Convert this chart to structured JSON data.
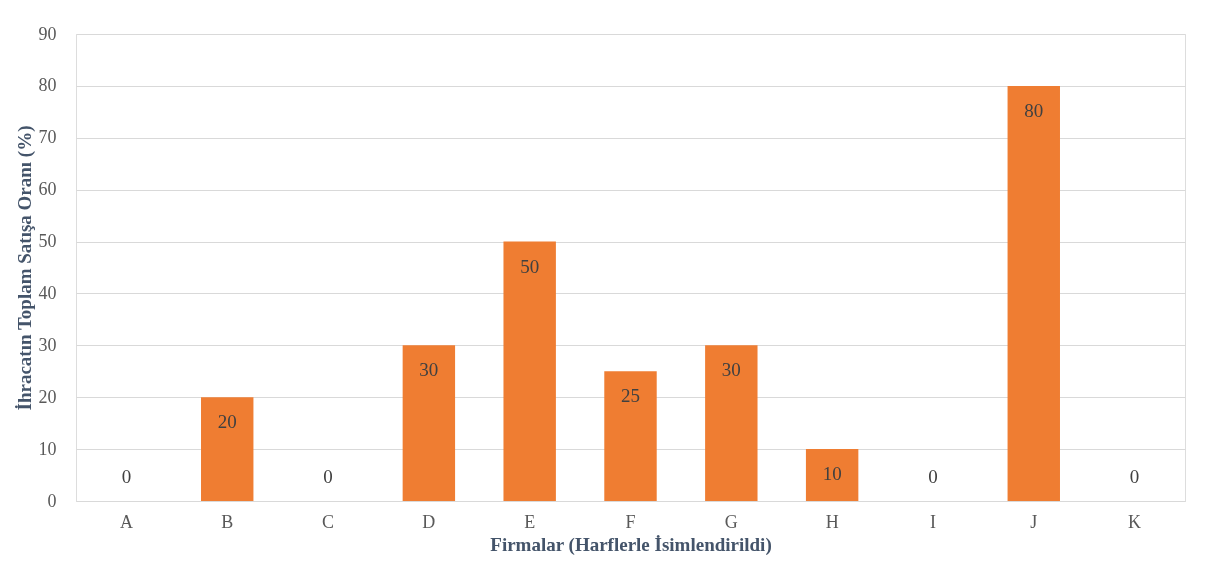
{
  "chart_data": {
    "type": "bar",
    "xlabel": "Firmalar (Harflerle İsimlendirildi)",
    "ylabel": "İhracatın Toplam Satışa Oranı (%)",
    "categories": [
      "A",
      "B",
      "C",
      "D",
      "E",
      "F",
      "G",
      "H",
      "I",
      "J",
      "K"
    ],
    "values": [
      0,
      20,
      0,
      30,
      50,
      25,
      30,
      10,
      0,
      80,
      0
    ],
    "color": "#ef7d32",
    "ylim": [
      0,
      90
    ],
    "yticks": [
      0,
      10,
      20,
      30,
      40,
      50,
      60,
      70,
      80,
      90
    ],
    "grid": "y",
    "data_labels": true
  }
}
